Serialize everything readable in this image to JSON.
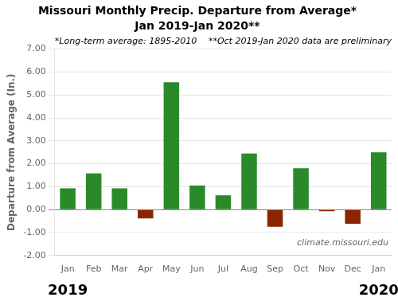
{
  "chart_data": {
    "type": "bar",
    "title": "Missouri Monthly Precip. Departure from Average*",
    "subtitle": "Jan 2019-Jan 2020**",
    "y_label": "Departure from Average (In.)",
    "categories": [
      "Jan",
      "Feb",
      "Mar",
      "Apr",
      "May",
      "Jun",
      "Jul",
      "Aug",
      "Sep",
      "Oct",
      "Nov",
      "Dec",
      "Jan"
    ],
    "values": [
      0.93,
      1.58,
      0.93,
      -0.38,
      5.55,
      1.05,
      0.62,
      2.45,
      -0.75,
      1.8,
      -0.07,
      -0.62,
      2.5
    ],
    "colors": [
      "#2a8a2a",
      "#2a8a2a",
      "#2a8a2a",
      "#8b2500",
      "#2a8a2a",
      "#2a8a2a",
      "#2a8a2a",
      "#2a8a2a",
      "#8b2500",
      "#2a8a2a",
      "#8b2500",
      "#8b2500",
      "#2a8a2a"
    ],
    "ylim": [
      -2.0,
      7.0
    ],
    "yticks": [
      {
        "value": -2.0,
        "label": "-2.00"
      },
      {
        "value": -1.0,
        "label": "-1.00"
      },
      {
        "value": 0.0,
        "label": "0.00"
      },
      {
        "value": 1.0,
        "label": "1.00"
      },
      {
        "value": 2.0,
        "label": "2.00"
      },
      {
        "value": 3.0,
        "label": "3.00"
      },
      {
        "value": 4.0,
        "label": "4.00"
      },
      {
        "value": 5.0,
        "label": "5.00"
      },
      {
        "value": 6.0,
        "label": "6.00"
      },
      {
        "value": 7.0,
        "label": "7.00"
      }
    ],
    "grid": true,
    "annotations": [
      "*Long-term average: 1895-2010",
      "**Oct 2019-Jan 2020 data are preliminary",
      "climate.missouri.edu",
      "2019",
      "2020"
    ]
  }
}
